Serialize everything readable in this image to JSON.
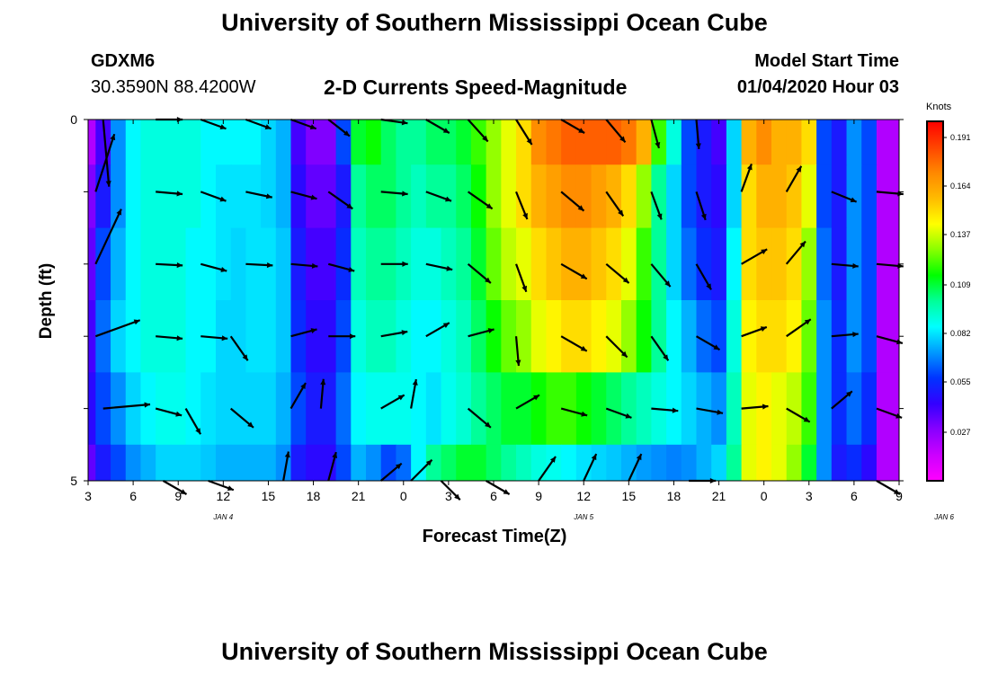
{
  "header": {
    "title": "University of Southern Mississippi Ocean Cube",
    "station": "GDXM6",
    "coords": "30.3590N 88.4200W",
    "subtitle": "2-D Currents Speed-Magnitude",
    "model_start_label": "Model Start Time",
    "model_start_value": "01/04/2020 Hour 03"
  },
  "footer": {
    "title": "University of Southern Mississippi Ocean Cube"
  },
  "colors": {
    "palette": [
      "#ff00ff",
      "#cc00ff",
      "#8800ff",
      "#3300ff",
      "#0033ff",
      "#0099ff",
      "#00ffff",
      "#00ff99",
      "#00ff00",
      "#88ff00",
      "#ffff00",
      "#ffbb00",
      "#ff8800",
      "#ff4400",
      "#ff0000"
    ],
    "arrow": "#000000"
  },
  "chart_data": {
    "type": "heatmap",
    "xlabel": "Forecast Time(Z)",
    "ylabel": "Depth (ft)",
    "colorbar_label": "Knots",
    "x_ticks": [
      "3",
      "6",
      "9",
      "12",
      "15",
      "18",
      "21",
      "0",
      "3",
      "6",
      "9",
      "12",
      "15",
      "18",
      "21",
      "0",
      "3",
      "6",
      "9"
    ],
    "day_labels": [
      {
        "text": "JAN 4",
        "at_hour": 12
      },
      {
        "text": "JAN 5",
        "at_hour": 36
      },
      {
        "text": "JAN 6",
        "at_hour": 60
      }
    ],
    "x_range_hours": [
      3,
      57
    ],
    "y_ticks": [
      "0",
      "5"
    ],
    "y_range": [
      0,
      5
    ],
    "colorbar_ticks": [
      0.191,
      0.164,
      0.137,
      0.109,
      0.082,
      0.055,
      0.027
    ],
    "colorbar_range": [
      0.0,
      0.2
    ],
    "layer_depths": [
      0.25,
      1.0,
      2.0,
      3.0,
      4.0,
      5.0
    ],
    "hours": [
      3,
      4,
      5,
      6,
      7,
      8,
      9,
      10,
      11,
      12,
      13,
      14,
      15,
      16,
      17,
      18,
      19,
      20,
      21,
      22,
      23,
      24,
      25,
      26,
      27,
      28,
      29,
      30,
      31,
      32,
      33,
      34,
      35,
      36,
      37,
      38,
      39,
      40,
      41,
      42,
      43,
      44,
      45,
      46,
      47,
      48,
      49,
      50,
      51,
      52,
      53,
      54,
      55,
      56,
      57
    ],
    "speed": [
      [
        0.02,
        0.04,
        0.07,
        0.085,
        0.09,
        0.09,
        0.09,
        0.09,
        0.085,
        0.085,
        0.085,
        0.085,
        0.08,
        0.075,
        0.04,
        0.03,
        0.03,
        0.06,
        0.11,
        0.115,
        0.105,
        0.1,
        0.1,
        0.105,
        0.105,
        0.11,
        0.12,
        0.13,
        0.14,
        0.15,
        0.17,
        0.175,
        0.18,
        0.18,
        0.18,
        0.18,
        0.175,
        0.16,
        0.12,
        0.09,
        0.06,
        0.05,
        0.04,
        0.08,
        0.16,
        0.17,
        0.16,
        0.16,
        0.15,
        0.06,
        0.05,
        0.07,
        0.06,
        0.02,
        0.02
      ],
      [
        0.03,
        0.05,
        0.07,
        0.085,
        0.09,
        0.09,
        0.09,
        0.09,
        0.085,
        0.082,
        0.082,
        0.082,
        0.08,
        0.075,
        0.045,
        0.035,
        0.035,
        0.05,
        0.1,
        0.105,
        0.105,
        0.1,
        0.095,
        0.1,
        0.1,
        0.105,
        0.115,
        0.13,
        0.14,
        0.15,
        0.16,
        0.165,
        0.17,
        0.17,
        0.165,
        0.16,
        0.15,
        0.13,
        0.1,
        0.08,
        0.06,
        0.05,
        0.045,
        0.08,
        0.15,
        0.16,
        0.16,
        0.155,
        0.14,
        0.06,
        0.05,
        0.07,
        0.06,
        0.02,
        0.02
      ],
      [
        0.035,
        0.06,
        0.075,
        0.085,
        0.09,
        0.09,
        0.09,
        0.085,
        0.085,
        0.082,
        0.08,
        0.082,
        0.082,
        0.078,
        0.05,
        0.04,
        0.04,
        0.055,
        0.095,
        0.1,
        0.1,
        0.095,
        0.09,
        0.09,
        0.095,
        0.1,
        0.11,
        0.125,
        0.135,
        0.14,
        0.15,
        0.155,
        0.16,
        0.16,
        0.155,
        0.15,
        0.14,
        0.12,
        0.1,
        0.08,
        0.065,
        0.055,
        0.05,
        0.085,
        0.15,
        0.155,
        0.155,
        0.15,
        0.13,
        0.065,
        0.05,
        0.07,
        0.06,
        0.02,
        0.02
      ],
      [
        0.04,
        0.065,
        0.08,
        0.085,
        0.09,
        0.09,
        0.09,
        0.085,
        0.085,
        0.08,
        0.08,
        0.082,
        0.082,
        0.078,
        0.055,
        0.045,
        0.045,
        0.06,
        0.09,
        0.095,
        0.095,
        0.09,
        0.085,
        0.085,
        0.09,
        0.095,
        0.105,
        0.115,
        0.125,
        0.13,
        0.14,
        0.145,
        0.15,
        0.15,
        0.145,
        0.14,
        0.13,
        0.115,
        0.1,
        0.085,
        0.075,
        0.065,
        0.06,
        0.09,
        0.145,
        0.15,
        0.15,
        0.145,
        0.125,
        0.07,
        0.055,
        0.07,
        0.06,
        0.02,
        0.02
      ],
      [
        0.045,
        0.06,
        0.07,
        0.08,
        0.085,
        0.088,
        0.088,
        0.085,
        0.082,
        0.08,
        0.08,
        0.08,
        0.08,
        0.075,
        0.06,
        0.05,
        0.05,
        0.065,
        0.085,
        0.088,
        0.088,
        0.088,
        0.085,
        0.082,
        0.088,
        0.092,
        0.1,
        0.105,
        0.11,
        0.11,
        0.115,
        0.12,
        0.12,
        0.115,
        0.11,
        0.105,
        0.1,
        0.095,
        0.09,
        0.085,
        0.08,
        0.075,
        0.07,
        0.095,
        0.14,
        0.145,
        0.14,
        0.135,
        0.12,
        0.07,
        0.055,
        0.065,
        0.055,
        0.02,
        0.02
      ],
      [
        0.035,
        0.05,
        0.06,
        0.07,
        0.075,
        0.08,
        0.08,
        0.08,
        0.078,
        0.075,
        0.075,
        0.075,
        0.075,
        0.07,
        0.05,
        0.045,
        0.045,
        0.06,
        0.075,
        0.07,
        0.06,
        0.065,
        0.085,
        0.1,
        0.105,
        0.11,
        0.11,
        0.105,
        0.1,
        0.095,
        0.09,
        0.088,
        0.085,
        0.082,
        0.08,
        0.078,
        0.075,
        0.072,
        0.07,
        0.068,
        0.07,
        0.075,
        0.08,
        0.1,
        0.14,
        0.145,
        0.14,
        0.13,
        0.11,
        0.07,
        0.05,
        0.055,
        0.045,
        0.02,
        0.02
      ]
    ],
    "arrows": [
      {
        "depth": 0.0,
        "points": [
          [
            4,
            85,
            0.5
          ],
          [
            7.5,
            0,
            0.2
          ],
          [
            10.5,
            20,
            0.2
          ],
          [
            13.5,
            20,
            0.2
          ],
          [
            16.5,
            20,
            0.2
          ],
          [
            19,
            38,
            0.2
          ],
          [
            22.5,
            8,
            0.2
          ],
          [
            25.5,
            30,
            0.2
          ],
          [
            28.3,
            48,
            0.22
          ],
          [
            31.5,
            58,
            0.22
          ],
          [
            34.5,
            30,
            0.2
          ],
          [
            37.5,
            50,
            0.22
          ],
          [
            40.5,
            75,
            0.22
          ],
          [
            43.5,
            85,
            0.22
          ]
        ]
      },
      {
        "depth": 1.0,
        "points": [
          [
            3.5,
            -72,
            0.45
          ],
          [
            7.5,
            5,
            0.2
          ],
          [
            10.5,
            20,
            0.2
          ],
          [
            13.5,
            12,
            0.2
          ],
          [
            16.5,
            15,
            0.2
          ],
          [
            19,
            35,
            0.22
          ],
          [
            22.5,
            5,
            0.2
          ],
          [
            25.5,
            20,
            0.2
          ],
          [
            28.3,
            35,
            0.22
          ],
          [
            31.5,
            68,
            0.22
          ],
          [
            34.5,
            40,
            0.22
          ],
          [
            37.5,
            55,
            0.22
          ],
          [
            40.5,
            70,
            0.22
          ],
          [
            43.5,
            72,
            0.22
          ],
          [
            46.5,
            -70,
            0.22
          ],
          [
            49.5,
            -60,
            0.22
          ],
          [
            52.5,
            22,
            0.2
          ],
          [
            55.5,
            5,
            0.2
          ]
        ]
      },
      {
        "depth": 2.0,
        "points": [
          [
            3.5,
            -65,
            0.45
          ],
          [
            7.5,
            3,
            0.2
          ],
          [
            10.5,
            15,
            0.2
          ],
          [
            13.5,
            3,
            0.2
          ],
          [
            16.5,
            5,
            0.2
          ],
          [
            19,
            15,
            0.2
          ],
          [
            22.5,
            0,
            0.2
          ],
          [
            25.5,
            12,
            0.2
          ],
          [
            28.3,
            40,
            0.22
          ],
          [
            31.5,
            70,
            0.22
          ],
          [
            34.5,
            30,
            0.22
          ],
          [
            37.5,
            40,
            0.22
          ],
          [
            40.5,
            50,
            0.22
          ],
          [
            43.5,
            60,
            0.22
          ],
          [
            46.5,
            -30,
            0.22
          ],
          [
            49.5,
            -50,
            0.22
          ],
          [
            52.5,
            5,
            0.2
          ],
          [
            55.5,
            5,
            0.2
          ]
        ]
      },
      {
        "depth": 3.0,
        "points": [
          [
            3.5,
            -20,
            0.35
          ],
          [
            7.5,
            5,
            0.2
          ],
          [
            10.5,
            5,
            0.2
          ],
          [
            12.5,
            55,
            0.22
          ],
          [
            16.5,
            -15,
            0.2
          ],
          [
            19,
            0,
            0.2
          ],
          [
            22.5,
            -10,
            0.2
          ],
          [
            25.5,
            -30,
            0.2
          ],
          [
            28.3,
            -15,
            0.2
          ],
          [
            31.5,
            85,
            0.22
          ],
          [
            34.5,
            30,
            0.22
          ],
          [
            37.5,
            45,
            0.22
          ],
          [
            40.5,
            55,
            0.22
          ],
          [
            43.5,
            30,
            0.2
          ],
          [
            46.5,
            -20,
            0.2
          ],
          [
            49.5,
            -35,
            0.22
          ],
          [
            52.5,
            -5,
            0.2
          ],
          [
            55.5,
            15,
            0.2
          ]
        ]
      },
      {
        "depth": 4.0,
        "points": [
          [
            4,
            -5,
            0.35
          ],
          [
            7.5,
            15,
            0.2
          ],
          [
            9.5,
            60,
            0.22
          ],
          [
            12.5,
            40,
            0.22
          ],
          [
            16.5,
            -60,
            0.22
          ],
          [
            18.5,
            -85,
            0.22
          ],
          [
            22.5,
            -30,
            0.2
          ],
          [
            24.5,
            -80,
            0.22
          ],
          [
            28.3,
            40,
            0.22
          ],
          [
            31.5,
            -30,
            0.2
          ],
          [
            34.5,
            15,
            0.2
          ],
          [
            37.5,
            20,
            0.2
          ],
          [
            40.5,
            5,
            0.2
          ],
          [
            43.5,
            10,
            0.2
          ],
          [
            46.5,
            -5,
            0.2
          ],
          [
            49.5,
            30,
            0.2
          ],
          [
            52.5,
            -40,
            0.2
          ],
          [
            55.5,
            20,
            0.2
          ]
        ]
      },
      {
        "depth": 5.0,
        "points": [
          [
            8,
            30,
            0.2
          ],
          [
            11,
            20,
            0.2
          ],
          [
            16,
            -80,
            0.22
          ],
          [
            19,
            -75,
            0.22
          ],
          [
            22.5,
            -40,
            0.2
          ],
          [
            24.5,
            -45,
            0.22
          ],
          [
            26.5,
            45,
            0.2
          ],
          [
            29.5,
            30,
            0.2
          ],
          [
            33,
            -55,
            0.22
          ],
          [
            36,
            -65,
            0.22
          ],
          [
            39,
            -65,
            0.22
          ],
          [
            43,
            0,
            0.2
          ],
          [
            55.5,
            30,
            0.2
          ]
        ]
      }
    ]
  }
}
